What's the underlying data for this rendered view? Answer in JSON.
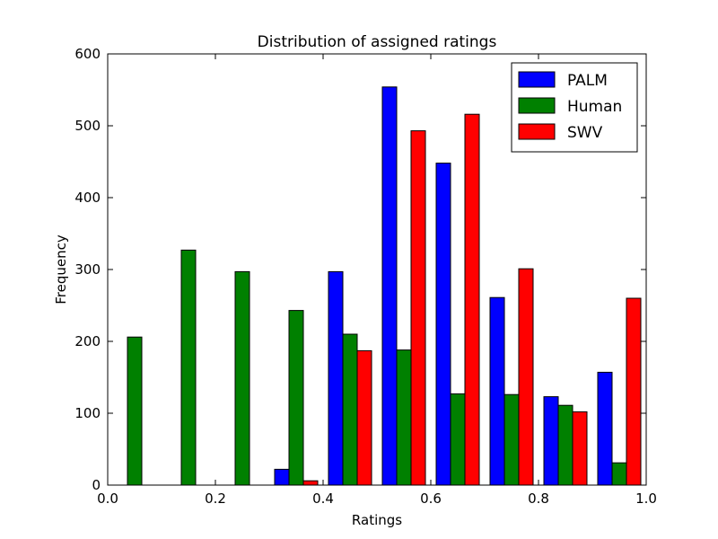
{
  "chart_data": {
    "type": "bar",
    "title": "Distribution of assigned ratings",
    "xlabel": "Ratings",
    "ylabel": "Frequency",
    "xlim": [
      0.0,
      1.0
    ],
    "ylim": [
      0,
      600
    ],
    "xticks": [
      0.0,
      0.2,
      0.4,
      0.6,
      0.8,
      1.0
    ],
    "xtick_labels": [
      "0.0",
      "0.2",
      "0.4",
      "0.6",
      "0.8",
      "1.0"
    ],
    "yticks": [
      0,
      100,
      200,
      300,
      400,
      500,
      600
    ],
    "ytick_labels": [
      "0",
      "100",
      "200",
      "300",
      "400",
      "500",
      "600"
    ],
    "bin_edges": [
      0.0,
      0.1,
      0.2,
      0.3,
      0.4,
      0.5,
      0.6,
      0.7,
      0.8,
      0.9,
      1.0
    ],
    "grid": false,
    "legend_position": "top-right",
    "series": [
      {
        "name": "PALM",
        "color": "#0000ff",
        "values": [
          0,
          0,
          0,
          22,
          297,
          554,
          448,
          261,
          123,
          157
        ]
      },
      {
        "name": "Human",
        "color": "#008000",
        "values": [
          206,
          327,
          297,
          243,
          210,
          188,
          127,
          126,
          111,
          31
        ]
      },
      {
        "name": "SWV",
        "color": "#ff0000",
        "values": [
          0,
          0,
          0,
          6,
          187,
          493,
          516,
          301,
          102,
          260
        ]
      }
    ]
  }
}
